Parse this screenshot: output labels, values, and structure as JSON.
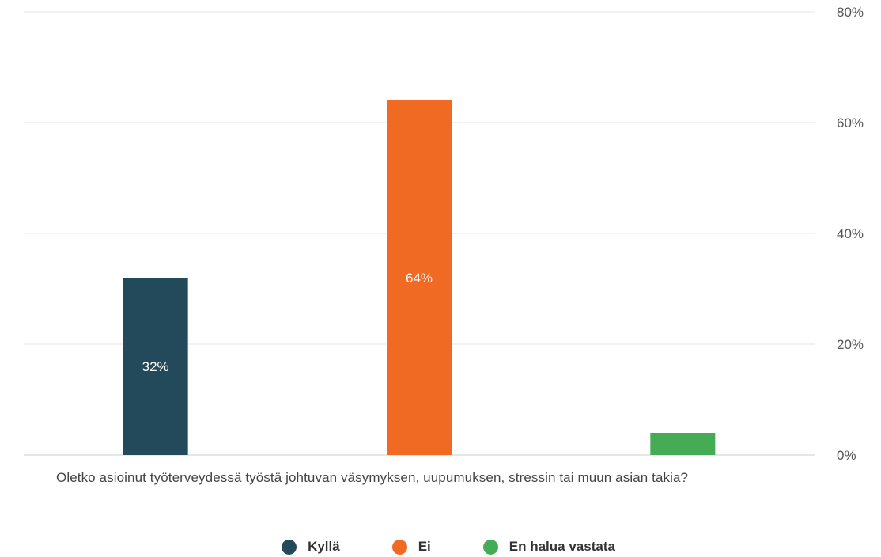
{
  "chart_data": {
    "type": "bar",
    "categories": [
      "Oletko asioinut työterveydessä työstä johtuvan väsymyksen, uupumuksen, stressin tai muun asian takia?"
    ],
    "series": [
      {
        "name": "Kyllä",
        "values": [
          32
        ],
        "color": "#234a5a",
        "data_label": "32%"
      },
      {
        "name": "Ei",
        "values": [
          64
        ],
        "color": "#f06a24",
        "data_label": "64%"
      },
      {
        "name": "En halua vastata",
        "values": [
          4
        ],
        "color": "#45ab55",
        "data_label": ""
      }
    ],
    "y_ticks": [
      "0%",
      "20%",
      "40%",
      "60%",
      "80%"
    ],
    "ylim": [
      0,
      80
    ],
    "y_axis_side": "right",
    "grid": true,
    "legend_position": "bottom"
  }
}
